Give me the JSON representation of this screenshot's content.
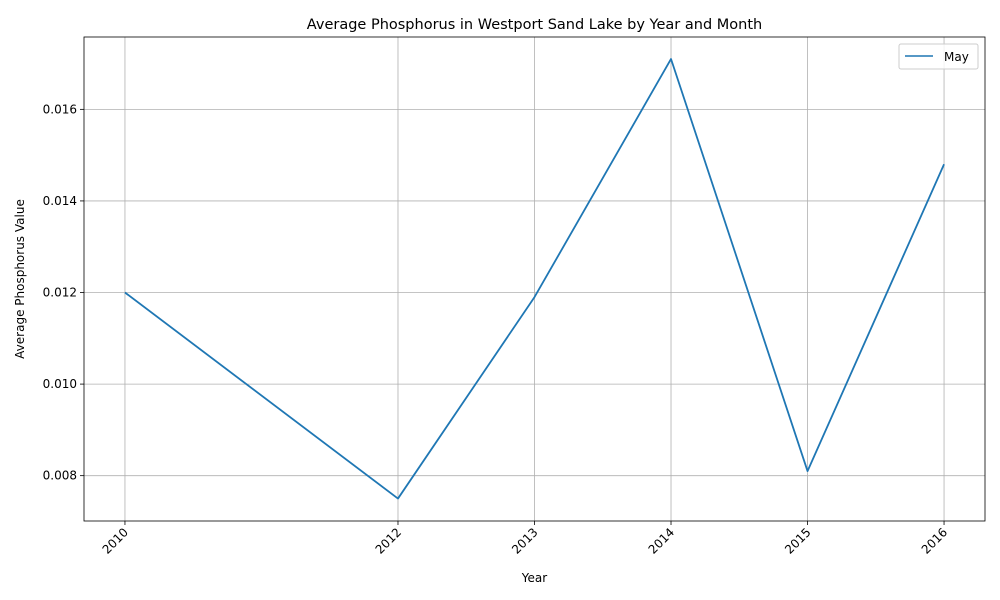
{
  "chart_data": {
    "type": "line",
    "title": "Average Phosphorus in Westport Sand Lake by Year and Month",
    "xlabel": "Year",
    "ylabel": "Average Phosphorus Value",
    "x": [
      2010,
      2012,
      2013,
      2014,
      2015,
      2016
    ],
    "xtick_labels": [
      "2010",
      "2012",
      "2013",
      "2014",
      "2015",
      "2016"
    ],
    "ytick_values": [
      0.008,
      0.01,
      0.012,
      0.014,
      0.016
    ],
    "ytick_labels": [
      "0.008",
      "0.010",
      "0.012",
      "0.014",
      "0.016"
    ],
    "xlim": [
      2009.7,
      2016.3
    ],
    "ylim": [
      0.00701,
      0.01758
    ],
    "grid": true,
    "legend_position": "top-right",
    "series": [
      {
        "name": "May",
        "color": "#1f77b4",
        "values": [
          0.012,
          0.0075,
          0.0119,
          0.0171,
          0.0081,
          0.0148
        ]
      }
    ]
  }
}
